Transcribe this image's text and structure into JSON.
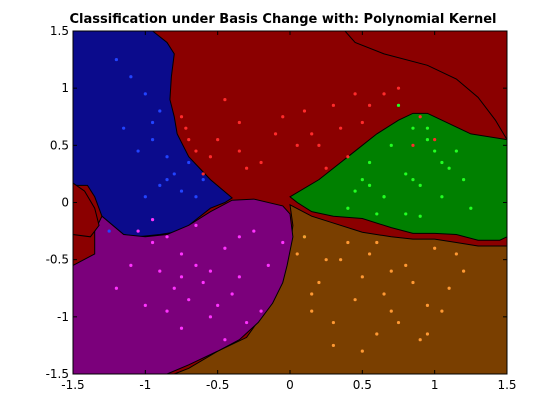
{
  "chart_data": {
    "type": "scatter",
    "title": "Classification under Basis Change with: Polynomial Kernel",
    "xlabel": "",
    "ylabel": "",
    "xlim": [
      -1.5,
      1.5
    ],
    "ylim": [
      -1.5,
      1.5
    ],
    "xticks": [
      -1.5,
      -1,
      -0.5,
      0,
      0.5,
      1,
      1.5
    ],
    "yticks": [
      -1.5,
      -1,
      -0.5,
      0,
      0.5,
      1,
      1.5
    ],
    "xtick_labels": [
      "-1.5",
      "-1",
      "-0.5",
      "0",
      "0.5",
      "1",
      "1.5"
    ],
    "ytick_labels": [
      "-1.5",
      "-1",
      "-0.5",
      "0",
      "0.5",
      "1",
      "1.5"
    ],
    "grid": false,
    "legend": "none",
    "regions": [
      {
        "class": "blue",
        "color": "#0b0b8c",
        "polygon": [
          [
            -1.5,
            1.5
          ],
          [
            -0.95,
            1.5
          ],
          [
            -0.85,
            1.4
          ],
          [
            -0.8,
            1.3
          ],
          [
            -0.82,
            1.1
          ],
          [
            -0.83,
            0.9
          ],
          [
            -0.8,
            0.75
          ],
          [
            -0.78,
            0.6
          ],
          [
            -0.7,
            0.4
          ],
          [
            -0.55,
            0.2
          ],
          [
            -0.4,
            0.04
          ],
          [
            -0.45,
            0.0
          ],
          [
            -0.55,
            -0.05
          ],
          [
            -0.65,
            -0.15
          ],
          [
            -0.75,
            -0.25
          ],
          [
            -0.9,
            -0.28
          ],
          [
            -1.05,
            -0.3
          ],
          [
            -1.15,
            -0.28
          ],
          [
            -1.3,
            -0.12
          ],
          [
            -1.35,
            0.05
          ],
          [
            -1.4,
            0.15
          ],
          [
            -1.5,
            0.15
          ]
        ]
      },
      {
        "class": "red",
        "color": "#8b0000",
        "polygon": [
          [
            -0.8,
            1.5
          ],
          [
            0.38,
            1.5
          ],
          [
            0.45,
            1.4
          ],
          [
            0.65,
            1.3
          ],
          [
            0.95,
            1.2
          ],
          [
            1.15,
            1.08
          ],
          [
            1.3,
            0.92
          ],
          [
            1.42,
            0.72
          ],
          [
            1.5,
            0.55
          ],
          [
            1.5,
            1.5
          ],
          [
            -0.82,
            1.5
          ],
          [
            -0.82,
            1.5
          ]
        ]
      },
      {
        "class": "green",
        "color": "#008000",
        "polygon": [
          [
            0.0,
            0.05
          ],
          [
            0.2,
            0.2
          ],
          [
            0.35,
            0.35
          ],
          [
            0.45,
            0.45
          ],
          [
            0.6,
            0.6
          ],
          [
            0.75,
            0.72
          ],
          [
            0.85,
            0.78
          ],
          [
            0.95,
            0.78
          ],
          [
            1.05,
            0.72
          ],
          [
            1.15,
            0.66
          ],
          [
            1.25,
            0.6
          ],
          [
            1.5,
            0.55
          ],
          [
            1.5,
            -0.3
          ],
          [
            1.45,
            -0.33
          ],
          [
            1.3,
            -0.33
          ],
          [
            1.15,
            -0.28
          ],
          [
            1.0,
            -0.27
          ],
          [
            0.85,
            -0.27
          ],
          [
            0.7,
            -0.22
          ],
          [
            0.5,
            -0.14
          ],
          [
            0.3,
            -0.12
          ],
          [
            0.15,
            -0.08
          ],
          [
            0.05,
            0.0
          ]
        ]
      },
      {
        "class": "orange",
        "color": "#7a3f00",
        "polygon": [
          [
            0.0,
            -0.02
          ],
          [
            0.15,
            -0.12
          ],
          [
            0.3,
            -0.18
          ],
          [
            0.5,
            -0.26
          ],
          [
            0.7,
            -0.3
          ],
          [
            0.85,
            -0.32
          ],
          [
            1.0,
            -0.32
          ],
          [
            1.15,
            -0.35
          ],
          [
            1.3,
            -0.38
          ],
          [
            1.5,
            -0.38
          ],
          [
            1.5,
            -1.5
          ],
          [
            -0.8,
            -1.5
          ],
          [
            -0.7,
            -1.45
          ],
          [
            -0.5,
            -1.3
          ],
          [
            -0.3,
            -1.18
          ],
          [
            -0.2,
            -1.0
          ],
          [
            -0.1,
            -0.8
          ],
          [
            -0.05,
            -0.6
          ],
          [
            0.0,
            -0.4
          ],
          [
            0.02,
            -0.2
          ]
        ]
      },
      {
        "class": "purple",
        "color": "#7b007b",
        "polygon": [
          [
            -0.4,
            0.02
          ],
          [
            -0.25,
            0.03
          ],
          [
            -0.05,
            -0.03
          ],
          [
            0.0,
            -0.1
          ],
          [
            0.02,
            -0.3
          ],
          [
            -0.02,
            -0.55
          ],
          [
            -0.05,
            -0.7
          ],
          [
            -0.12,
            -0.88
          ],
          [
            -0.22,
            -1.05
          ],
          [
            -0.35,
            -1.2
          ],
          [
            -0.5,
            -1.3
          ],
          [
            -0.7,
            -1.42
          ],
          [
            -0.85,
            -1.5
          ],
          [
            -1.5,
            -1.5
          ],
          [
            -1.5,
            -0.55
          ],
          [
            -1.35,
            -0.45
          ],
          [
            -1.35,
            -0.25
          ],
          [
            -1.3,
            -0.12
          ],
          [
            -1.15,
            -0.28
          ],
          [
            -1.0,
            -0.3
          ],
          [
            -0.85,
            -0.28
          ],
          [
            -0.7,
            -0.2
          ],
          [
            -0.55,
            -0.08
          ]
        ]
      },
      {
        "class": "red-left",
        "color": "#8b0000",
        "polygon": [
          [
            -1.5,
            0.17
          ],
          [
            -1.42,
            0.1
          ],
          [
            -1.35,
            -0.05
          ],
          [
            -1.32,
            -0.2
          ],
          [
            -1.38,
            -0.3
          ],
          [
            -1.5,
            -0.28
          ]
        ]
      }
    ],
    "series": [
      {
        "color": "#ff2b2b",
        "x": [
          -0.75,
          -0.72,
          -0.5,
          -0.55,
          -0.35,
          -0.3,
          -0.1,
          -0.05,
          0.1,
          0.2,
          0.35,
          0.4,
          0.55,
          0.65,
          0.75,
          0.9,
          1.0,
          -0.65,
          -0.45,
          -0.2,
          0.05,
          0.25,
          -0.6,
          0.15,
          0.45,
          -0.35,
          0.3,
          -0.7,
          0.5,
          0.85
        ],
        "y": [
          0.75,
          0.65,
          0.55,
          0.4,
          0.45,
          0.3,
          0.6,
          0.75,
          0.8,
          0.5,
          0.65,
          0.4,
          0.85,
          0.95,
          1.0,
          0.75,
          0.55,
          0.45,
          0.9,
          0.35,
          0.5,
          0.3,
          0.25,
          0.6,
          0.95,
          0.7,
          0.85,
          0.55,
          0.7,
          0.5
        ]
      },
      {
        "color": "#22ff22",
        "x": [
          0.45,
          0.55,
          0.65,
          0.8,
          0.9,
          1.0,
          1.1,
          1.2,
          0.55,
          0.7,
          0.85,
          0.95,
          1.05,
          0.6,
          0.8,
          1.15,
          0.5,
          0.4,
          0.75,
          1.25,
          0.9,
          0.65,
          1.05,
          0.95,
          0.85,
          0.1
        ],
        "y": [
          0.1,
          0.15,
          0.05,
          0.25,
          0.15,
          0.45,
          0.3,
          0.2,
          0.35,
          0.5,
          0.65,
          0.55,
          0.05,
          -0.1,
          -0.1,
          0.45,
          0.2,
          -0.05,
          0.85,
          -0.05,
          -0.12,
          0.05,
          0.35,
          0.65,
          0.2,
          -0.3
        ]
      },
      {
        "color": "#ff9933",
        "x": [
          0.05,
          0.2,
          0.35,
          0.5,
          0.65,
          0.8,
          0.95,
          1.1,
          0.15,
          0.3,
          0.45,
          0.6,
          0.75,
          0.9,
          1.05,
          1.2,
          0.1,
          0.25,
          0.4,
          0.55,
          0.7,
          0.85,
          1.0,
          1.15,
          0.3,
          0.5,
          0.7,
          0.95,
          0.15,
          0.6
        ],
        "y": [
          -0.45,
          -0.7,
          -0.5,
          -0.65,
          -0.8,
          -0.55,
          -0.9,
          -0.75,
          -0.95,
          -1.05,
          -0.85,
          -1.15,
          -1.05,
          -1.2,
          -0.95,
          -0.6,
          -0.3,
          -0.5,
          -0.35,
          -0.45,
          -0.6,
          -0.7,
          -0.4,
          -0.45,
          -1.25,
          -1.3,
          -0.95,
          -1.15,
          -0.8,
          -0.35
        ]
      },
      {
        "color": "#ff33ff",
        "x": [
          -1.05,
          -0.95,
          -0.85,
          -0.75,
          -0.65,
          -0.55,
          -0.45,
          -0.35,
          -0.25,
          -1.1,
          -0.9,
          -0.8,
          -0.7,
          -0.6,
          -0.5,
          -0.4,
          -0.3,
          -0.2,
          -0.15,
          -1.0,
          -0.85,
          -0.75,
          -0.55,
          -0.45,
          -0.35,
          -0.05,
          -0.65,
          -1.2,
          -0.95,
          -0.75
        ],
        "y": [
          -0.25,
          -0.35,
          -0.3,
          -0.45,
          -0.55,
          -0.6,
          -0.4,
          -0.3,
          -0.25,
          -0.55,
          -0.6,
          -0.75,
          -0.85,
          -0.7,
          -0.9,
          -0.8,
          -1.05,
          -0.95,
          -0.55,
          -0.9,
          -0.95,
          -1.1,
          -1.0,
          -1.2,
          -0.65,
          -0.35,
          -0.2,
          -0.75,
          -0.15,
          -0.65
        ]
      },
      {
        "color": "#2244ff",
        "x": [
          -1.2,
          -1.1,
          -1.0,
          -0.9,
          -0.95,
          -0.85,
          -1.05,
          -0.8,
          -0.75,
          -1.15,
          -0.9,
          -1.0,
          -0.7,
          -0.65,
          -1.25,
          -0.95,
          -0.85,
          -0.6
        ],
        "y": [
          1.25,
          1.1,
          0.95,
          0.8,
          0.55,
          0.4,
          0.45,
          0.25,
          0.1,
          0.65,
          0.15,
          0.05,
          0.35,
          0.05,
          -0.25,
          0.7,
          0.2,
          0.2
        ]
      }
    ]
  }
}
